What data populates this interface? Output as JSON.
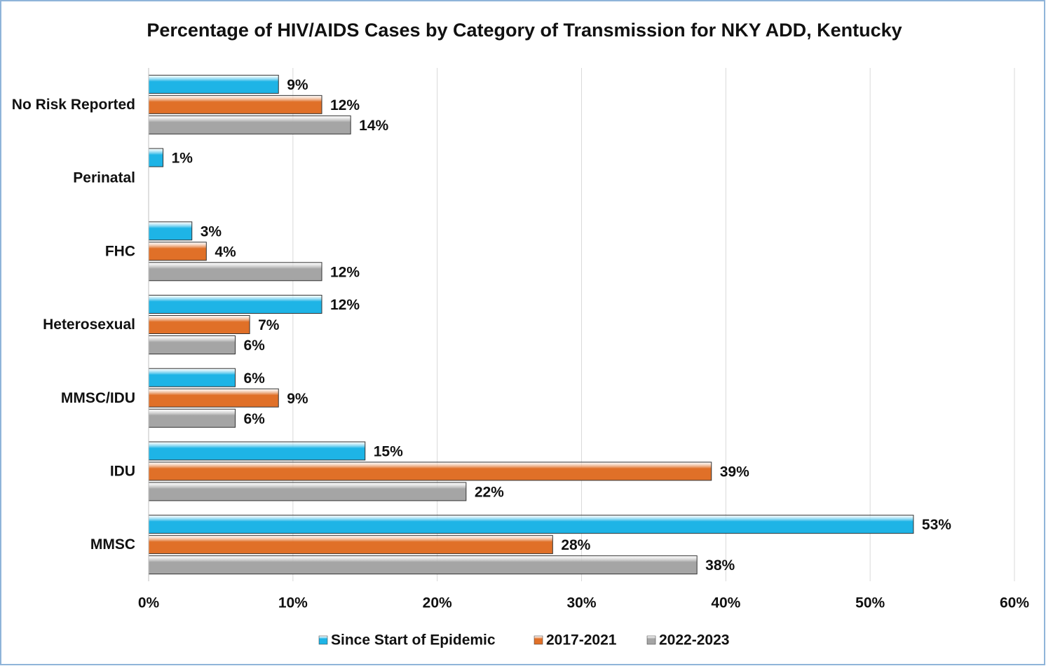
{
  "chart_data": {
    "type": "barh",
    "title": "Percentage of HIV/AIDS Cases by Category of Transmission  for NKY ADD, Kentucky",
    "categories": [
      "No Risk Reported",
      "Perinatal",
      "FHC",
      "Heterosexual",
      "MMSC/IDU",
      "IDU",
      "MMSC"
    ],
    "series": [
      {
        "name": "Since Start of Epidemic",
        "color": "#1eb4e6",
        "values": [
          9,
          1,
          3,
          12,
          6,
          15,
          53
        ],
        "value_labels": [
          "9%",
          "1%",
          "3%",
          "12%",
          "6%",
          "15%",
          "53%"
        ]
      },
      {
        "name": "2017-2021",
        "color": "#e07028",
        "values": [
          12,
          null,
          4,
          7,
          9,
          39,
          28
        ],
        "value_labels": [
          "12%",
          null,
          "4%",
          "7%",
          "9%",
          "39%",
          "28%"
        ]
      },
      {
        "name": "2022-2023",
        "color": "#a5a5a5",
        "values": [
          14,
          null,
          12,
          6,
          6,
          22,
          38
        ],
        "value_labels": [
          "14%",
          null,
          "12%",
          "6%",
          "6%",
          "22%",
          "38%"
        ]
      }
    ],
    "xlim": [
      0,
      60
    ],
    "xticks": [
      {
        "value": 0,
        "label": "0%"
      },
      {
        "value": 10,
        "label": "10%"
      },
      {
        "value": 20,
        "label": "20%"
      },
      {
        "value": 30,
        "label": "30%"
      },
      {
        "value": 40,
        "label": "40%"
      },
      {
        "value": 50,
        "label": "50%"
      },
      {
        "value": 60,
        "label": "60%"
      }
    ],
    "grid": true,
    "legend": "bottom"
  }
}
